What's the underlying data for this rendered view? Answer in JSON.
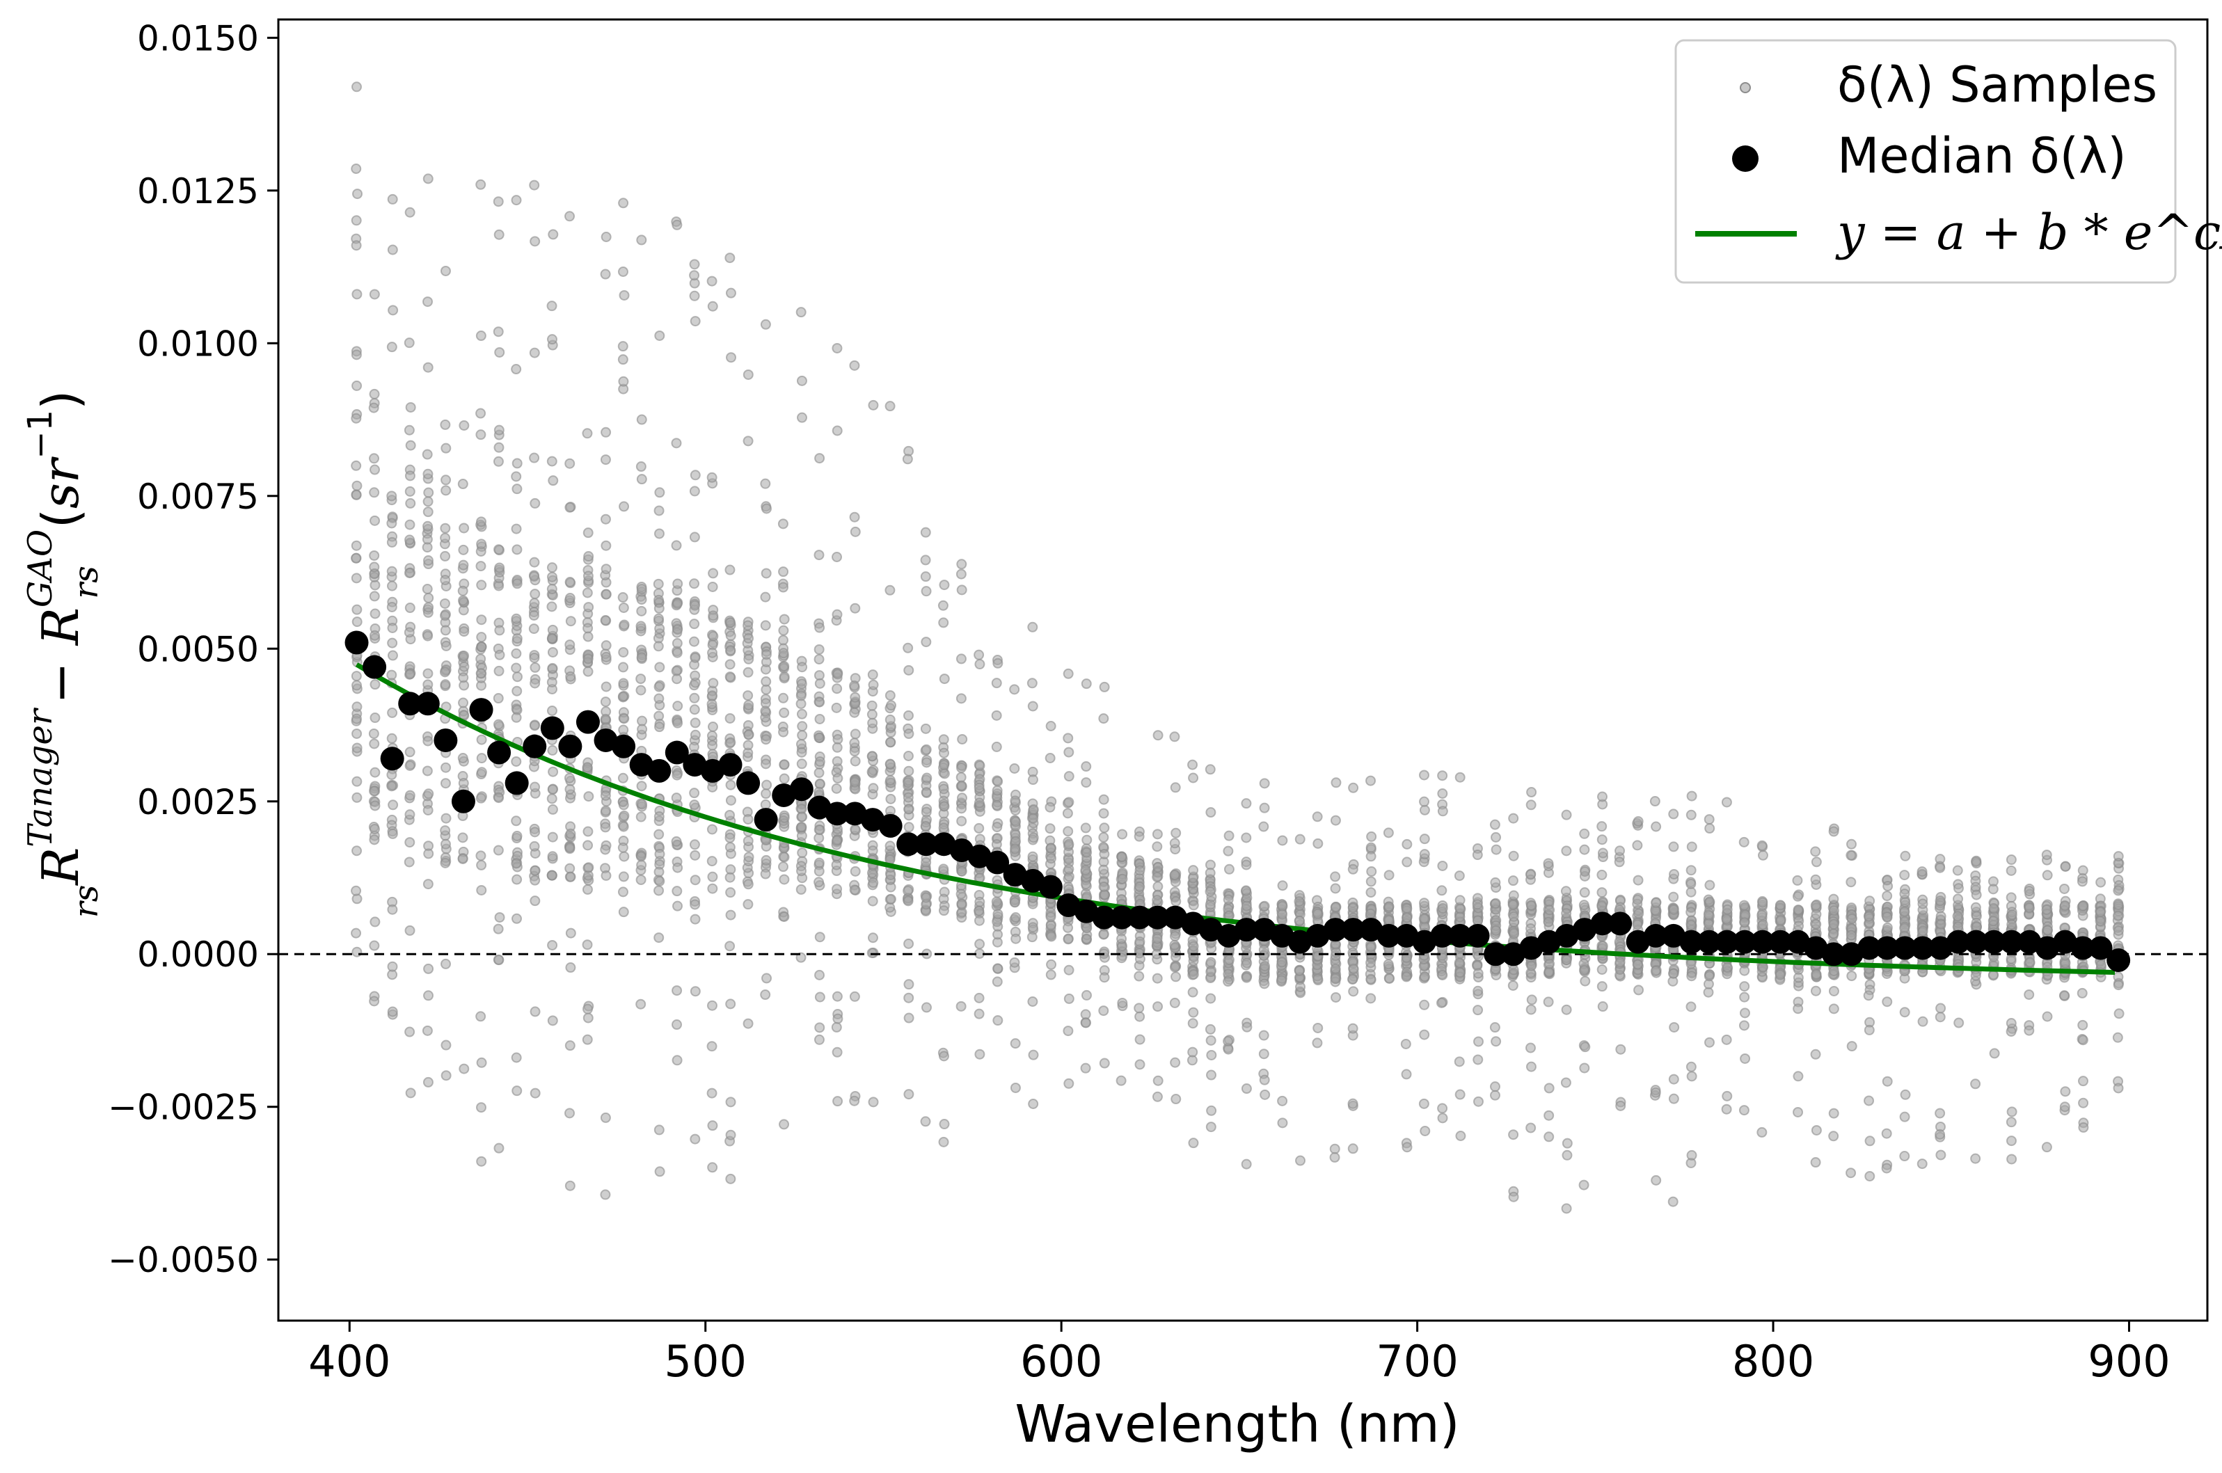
{
  "chart_data": {
    "type": "scatter",
    "xlabel": "Wavelength (nm)",
    "ylabel": {
      "base1": "R",
      "sup1": "Tanager",
      "sub1": "rs",
      "minus": "−",
      "base2": "R",
      "sup2": "GAO",
      "sub2": "rs",
      "unit_open": "(",
      "unit_base": "sr",
      "unit_sup": "−1",
      "unit_close": ")"
    },
    "xlim": [
      380,
      922
    ],
    "ylim": [
      -0.006,
      0.0153
    ],
    "x_ticks": [
      400,
      500,
      600,
      700,
      800,
      900
    ],
    "x_tick_labels": [
      "400",
      "500",
      "600",
      "700",
      "800",
      "900"
    ],
    "y_ticks": [
      -0.005,
      -0.0025,
      0.0,
      0.0025,
      0.005,
      0.0075,
      0.01,
      0.0125,
      0.015
    ],
    "y_tick_labels": [
      "−0.0050",
      "−0.0025",
      "0.0000",
      "0.0025",
      "0.0050",
      "0.0075",
      "0.0100",
      "0.0125",
      "0.0150"
    ],
    "reference_line": {
      "y": 0.0,
      "style": "dashed",
      "color": "#000000"
    },
    "series": [
      {
        "name": "δ(λ) Samples",
        "kind": "scatter",
        "color": "#8c8c8c",
        "description": "gray scatter of per-sample differences, roughly 40 samples per band every 5 nm",
        "band_envelope": {
          "x": [
            400,
            450,
            500,
            550,
            600,
            650,
            700,
            750,
            800,
            850,
            900
          ],
          "median": [
            0.005,
            0.0033,
            0.0031,
            0.0021,
            0.001,
            0.0004,
            0.0003,
            0.0004,
            0.0002,
            0.0001,
            0.0
          ],
          "q25": [
            0.002,
            0.0012,
            0.0012,
            0.0009,
            0.0002,
            -0.0005,
            -0.0004,
            -0.0003,
            -0.0004,
            -0.0003,
            -0.0004
          ],
          "q75": [
            0.0085,
            0.0065,
            0.0058,
            0.0042,
            0.002,
            0.001,
            0.0008,
            0.0009,
            0.0008,
            0.0008,
            0.0008
          ],
          "max": [
            0.0143,
            0.0128,
            0.0121,
            0.0092,
            0.005,
            0.0028,
            0.003,
            0.0026,
            0.0027,
            0.0017,
            0.0016
          ],
          "min": [
            -0.0015,
            -0.0045,
            -0.0043,
            -0.0035,
            -0.0025,
            -0.0036,
            -0.0034,
            -0.0045,
            -0.0038,
            -0.0036,
            -0.0032
          ]
        }
      },
      {
        "name": "Median δ(λ)",
        "kind": "scatter",
        "color": "#000000",
        "x": [
          402,
          407,
          412,
          417,
          422,
          427,
          432,
          437,
          442,
          447,
          452,
          457,
          462,
          467,
          472,
          477,
          482,
          487,
          492,
          497,
          502,
          507,
          512,
          517,
          522,
          527,
          532,
          537,
          542,
          547,
          552,
          557,
          562,
          567,
          572,
          577,
          582,
          587,
          592,
          597,
          602,
          607,
          612,
          617,
          622,
          627,
          632,
          637,
          642,
          647,
          652,
          657,
          662,
          667,
          672,
          677,
          682,
          687,
          692,
          697,
          702,
          707,
          712,
          717,
          722,
          727,
          732,
          737,
          742,
          747,
          752,
          757,
          762,
          767,
          772,
          777,
          782,
          787,
          792,
          797,
          802,
          807,
          812,
          817,
          822,
          827,
          832,
          837,
          842,
          847,
          852,
          857,
          862,
          867,
          872,
          877,
          882,
          887,
          892,
          897
        ],
        "y": [
          0.0051,
          0.0047,
          0.0032,
          0.0041,
          0.0041,
          0.0035,
          0.0025,
          0.004,
          0.0033,
          0.0028,
          0.0034,
          0.0037,
          0.0034,
          0.0038,
          0.0035,
          0.0034,
          0.0031,
          0.003,
          0.0033,
          0.0031,
          0.003,
          0.0031,
          0.0028,
          0.0022,
          0.0026,
          0.0027,
          0.0024,
          0.0023,
          0.0023,
          0.0022,
          0.0021,
          0.0018,
          0.0018,
          0.0018,
          0.0017,
          0.0016,
          0.0015,
          0.0013,
          0.0012,
          0.0011,
          0.0008,
          0.0007,
          0.0006,
          0.0006,
          0.0006,
          0.0006,
          0.0006,
          0.0005,
          0.0004,
          0.0003,
          0.0004,
          0.0004,
          0.0003,
          0.0002,
          0.0003,
          0.0004,
          0.0004,
          0.0004,
          0.0003,
          0.0003,
          0.0002,
          0.0003,
          0.0003,
          0.0003,
          0.0,
          0.0,
          0.0001,
          0.0002,
          0.0003,
          0.0004,
          0.0005,
          0.0005,
          0.0002,
          0.0003,
          0.0003,
          0.0002,
          0.0002,
          0.0002,
          0.0002,
          0.0002,
          0.0002,
          0.0002,
          0.0001,
          0.0,
          0.0,
          0.0001,
          0.0001,
          0.0001,
          0.0001,
          0.0001,
          0.0002,
          0.0002,
          0.0002,
          0.0002,
          0.0002,
          0.0001,
          0.0002,
          0.0001,
          0.0001,
          -0.0001
        ]
      },
      {
        "name": "y = a + b * e^(cλ)",
        "kind": "line",
        "color": "#008000",
        "fit": {
          "a": -0.0005,
          "b": 0.00531,
          "c": -0.0066,
          "x0": 400
        },
        "x_range": [
          402,
          897
        ]
      }
    ],
    "legend": {
      "position": "top-right",
      "entries": [
        {
          "label_prefix": "δ(λ) Samples",
          "label": "δ(λ) Samples"
        },
        {
          "label": "Median δ(λ)"
        },
        {
          "label": "y = a + b * e^cλ"
        }
      ]
    }
  }
}
